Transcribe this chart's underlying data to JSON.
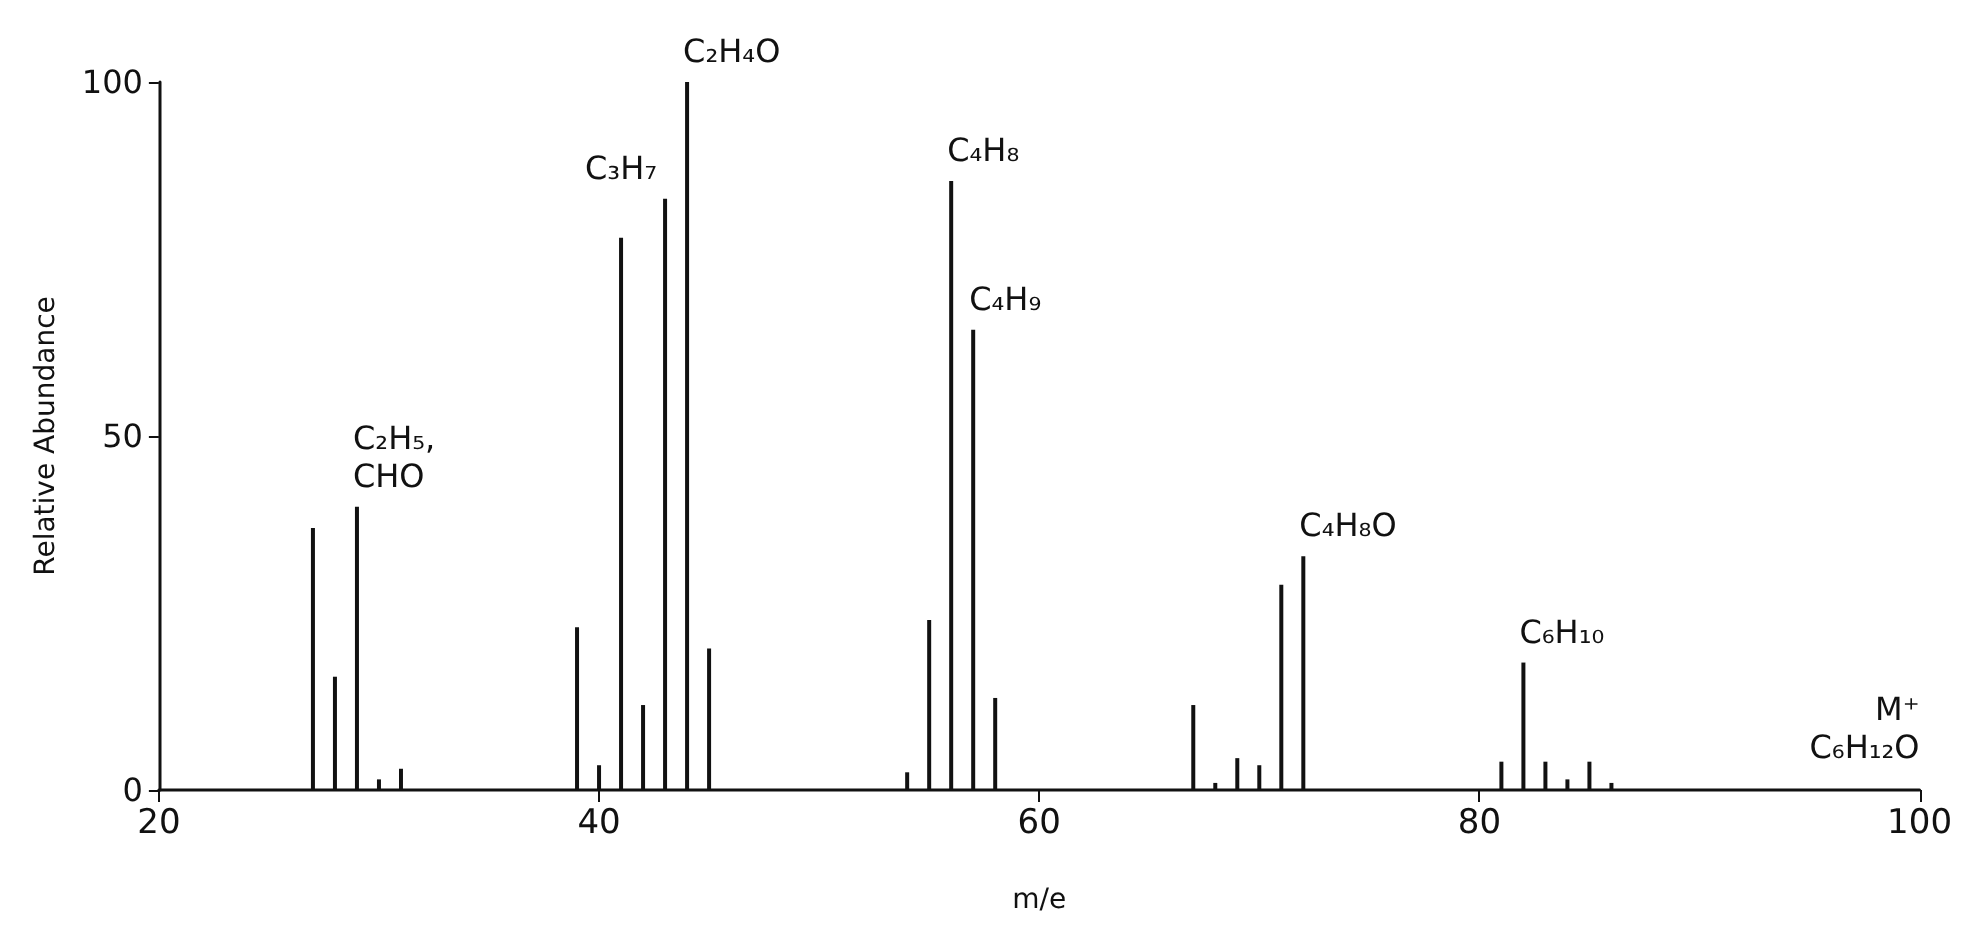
{
  "chart_data": {
    "type": "bar",
    "xlabel": "m/e",
    "ylabel": "Relative Abundance",
    "x": [
      27,
      28,
      29,
      30,
      31,
      39,
      40,
      41,
      42,
      43,
      44,
      45,
      54,
      55,
      56,
      57,
      58,
      67,
      68,
      69,
      70,
      71,
      72,
      81,
      82,
      83,
      84,
      85,
      86
    ],
    "values": [
      37,
      16,
      40,
      1.5,
      3,
      23,
      3.5,
      78,
      12,
      83.5,
      100,
      20,
      2.5,
      24,
      86,
      65,
      13,
      12,
      1,
      4.5,
      3.5,
      29,
      33,
      4,
      18,
      4,
      1.5,
      4,
      1
    ],
    "color": "#111111",
    "xlim": [
      20,
      100
    ],
    "xticks": [
      20,
      40,
      60,
      80,
      100
    ],
    "ylim": [
      0,
      100
    ],
    "yticks": [
      0,
      50,
      100
    ],
    "grid": false,
    "annotations": [
      {
        "text": "C₂H₅,\nCHO",
        "x": 29,
        "y": 40
      },
      {
        "text": "C₃H₇",
        "x": 43,
        "y": 83.5
      },
      {
        "text": "C₂H₄O",
        "x": 44,
        "y": 100
      },
      {
        "text": "C₄H₈",
        "x": 56,
        "y": 86
      },
      {
        "text": "C₄H₉",
        "x": 57,
        "y": 65
      },
      {
        "text": "C₄H₈O",
        "x": 72,
        "y": 33
      },
      {
        "text": "C₆H₁₀",
        "x": 82,
        "y": 18
      },
      "M⁺\nC₆H₁₂O"
    ]
  }
}
